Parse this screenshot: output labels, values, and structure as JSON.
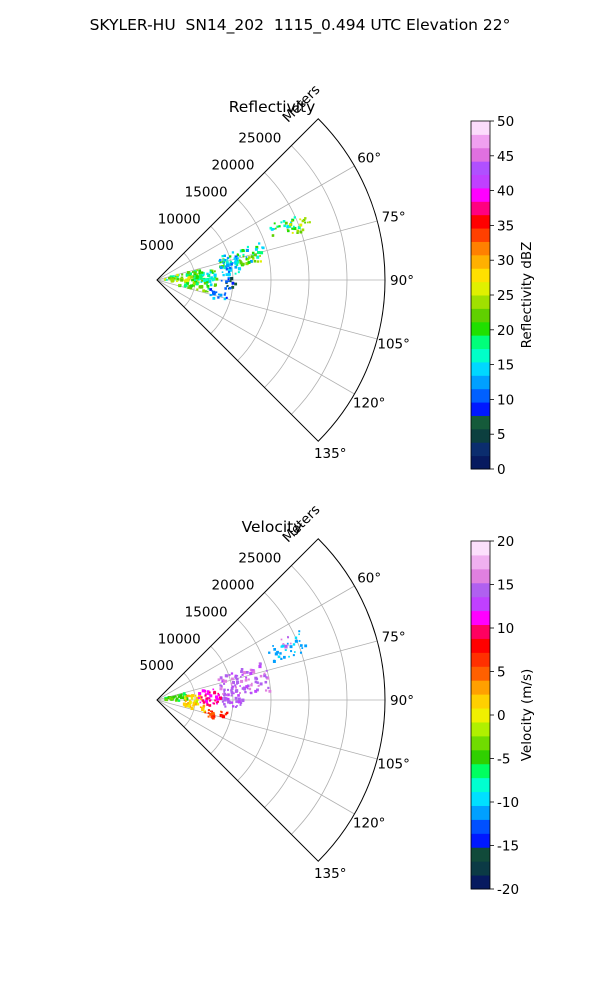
{
  "figure": {
    "title": "SKYLER-HU  SN14_202  1115_0.494 UTC Elevation 22°"
  },
  "chart_data": [
    {
      "type": "heatmap",
      "title": "Reflectivity",
      "projection": "polar sector",
      "r_label": "Meters",
      "r_ticks": [
        "5000",
        "10000",
        "15000",
        "20000",
        "25000"
      ],
      "r_tick_values": [
        5000,
        10000,
        15000,
        20000,
        25000
      ],
      "rlim": [
        0,
        30000
      ],
      "theta_ticks": [
        "60°",
        "75°",
        "90°",
        "105°",
        "120°",
        "135°"
      ],
      "theta_tick_values": [
        60,
        75,
        90,
        105,
        120,
        135
      ],
      "thetalim": [
        45,
        135
      ],
      "grid": true,
      "colorbar": {
        "label": "Reflectivity dBZ",
        "ticks": [
          "0",
          "5",
          "10",
          "15",
          "20",
          "25",
          "30",
          "35",
          "40",
          "45",
          "50"
        ],
        "range": [
          0,
          50
        ]
      },
      "cells": [
        {
          "theta": [
            64,
            70
          ],
          "r": [
            16000,
            20000
          ],
          "value": [
            14,
            22
          ]
        },
        {
          "theta": [
            66,
            72
          ],
          "r": [
            18500,
            21500
          ],
          "value": [
            21,
            27
          ]
        },
        {
          "theta": [
            70,
            80
          ],
          "r": [
            8500,
            15000
          ],
          "value": [
            12,
            22
          ]
        },
        {
          "theta": [
            74,
            80
          ],
          "r": [
            11000,
            14000
          ],
          "value": [
            20,
            26
          ]
        },
        {
          "theta": [
            72,
            86
          ],
          "r": [
            8500,
            11000
          ],
          "value": [
            10,
            16
          ]
        },
        {
          "theta": [
            76,
            90
          ],
          "r": [
            1000,
            6000
          ],
          "value": [
            16,
            26
          ]
        },
        {
          "theta": [
            84,
            94
          ],
          "r": [
            2000,
            5500
          ],
          "value": [
            20,
            28
          ]
        },
        {
          "theta": [
            80,
            96
          ],
          "r": [
            5000,
            8000
          ],
          "value": [
            14,
            24
          ]
        },
        {
          "theta": [
            88,
            98
          ],
          "r": [
            8500,
            10500
          ],
          "value": [
            4,
            12
          ]
        },
        {
          "theta": [
            95,
            104
          ],
          "r": [
            3000,
            7000
          ],
          "value": [
            18,
            24
          ]
        },
        {
          "theta": [
            100,
            108
          ],
          "r": [
            7000,
            9500
          ],
          "value": [
            9,
            14
          ]
        }
      ]
    },
    {
      "type": "heatmap",
      "title": "Velocity",
      "projection": "polar sector",
      "r_label": "Meters",
      "r_ticks": [
        "5000",
        "10000",
        "15000",
        "20000",
        "25000"
      ],
      "r_tick_values": [
        5000,
        10000,
        15000,
        20000,
        25000
      ],
      "rlim": [
        0,
        30000
      ],
      "theta_ticks": [
        "60°",
        "75°",
        "90°",
        "105°",
        "120°",
        "135°"
      ],
      "theta_tick_values": [
        60,
        75,
        90,
        105,
        120,
        135
      ],
      "thetalim": [
        45,
        135
      ],
      "grid": true,
      "colorbar": {
        "label": "Velocity (m/s)",
        "ticks": [
          "-20",
          "-15",
          "-10",
          "-5",
          "0",
          "5",
          "10",
          "15",
          "20"
        ],
        "range": [
          -20,
          20
        ]
      },
      "cells": [
        {
          "theta": [
            64,
            72
          ],
          "r": [
            16000,
            21000
          ],
          "value": [
            -12,
            -9
          ]
        },
        {
          "theta": [
            64,
            68
          ],
          "r": [
            18000,
            20000
          ],
          "value": [
            14,
            17
          ]
        },
        {
          "theta": [
            70,
            86
          ],
          "r": [
            8500,
            15000
          ],
          "value": [
            13,
            16
          ]
        },
        {
          "theta": [
            82,
            96
          ],
          "r": [
            8500,
            11500
          ],
          "value": [
            13,
            15
          ]
        },
        {
          "theta": [
            76,
            92
          ],
          "r": [
            1000,
            4000
          ],
          "value": [
            -6,
            -3
          ]
        },
        {
          "theta": [
            82,
            98
          ],
          "r": [
            3500,
            6000
          ],
          "value": [
            -1,
            4
          ]
        },
        {
          "theta": [
            78,
            96
          ],
          "r": [
            5500,
            8500
          ],
          "value": [
            9,
            12
          ]
        },
        {
          "theta": [
            94,
            104
          ],
          "r": [
            3500,
            6500
          ],
          "value": [
            0,
            3
          ]
        },
        {
          "theta": [
            100,
            108
          ],
          "r": [
            6500,
            9500
          ],
          "value": [
            5,
            8
          ]
        }
      ]
    }
  ],
  "colors": {
    "reflectivity_scale": [
      "#071a5f",
      "#0b2d6e",
      "#0c3f3f",
      "#155a3a",
      "#0018ff",
      "#0060ff",
      "#00a0ff",
      "#00d8ff",
      "#00ffc8",
      "#00ff7a",
      "#20e000",
      "#60d000",
      "#a0e000",
      "#e0f000",
      "#ffe000",
      "#ffb000",
      "#ff8000",
      "#ff4000",
      "#ff0000",
      "#ff0080",
      "#ff00ff",
      "#c040ff",
      "#b050ff",
      "#e070e0",
      "#f0a0f0",
      "#fcdcfc"
    ],
    "velocity_scale": [
      "#071a5f",
      "#0b3a45",
      "#114a3a",
      "#0018ff",
      "#0050ff",
      "#00a0ff",
      "#00e0ff",
      "#00ffd0",
      "#00ff60",
      "#30d000",
      "#70dc00",
      "#b0f000",
      "#f0f000",
      "#ffd000",
      "#ffa000",
      "#ff6000",
      "#ff3000",
      "#ff0000",
      "#ff0060",
      "#ff00ff",
      "#c040ff",
      "#b060f0",
      "#e080e0",
      "#f0b0f0",
      "#fce0fc"
    ]
  }
}
